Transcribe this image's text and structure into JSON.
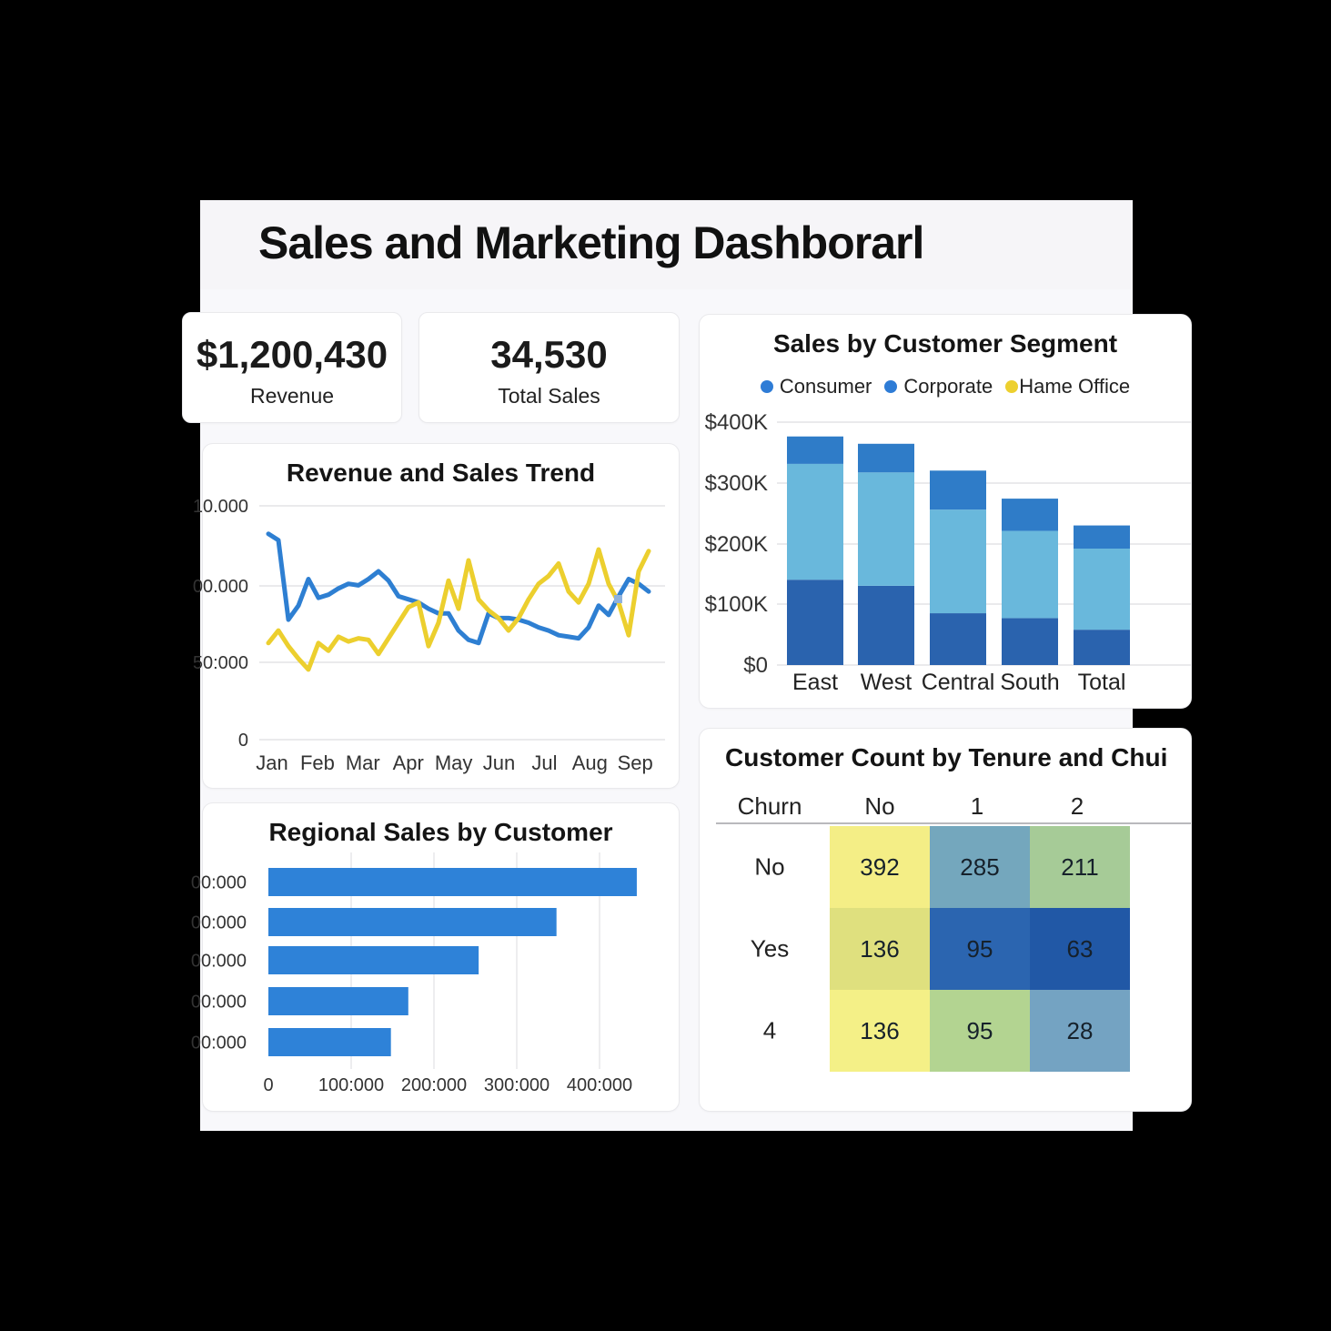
{
  "page": {
    "title": "Sales and Marketing Dashborarl"
  },
  "kpis": [
    {
      "value": "$1,200,430",
      "label": "Revenue"
    },
    {
      "value": "34,530",
      "label": "Total Sales"
    }
  ],
  "chart_data": [
    {
      "id": "trend",
      "type": "line",
      "title": "Revenue and Sales Trend",
      "x_tick_labels": [
        "Jan",
        "Feb",
        "Mar",
        "Apr",
        "May",
        "Jun",
        "Jul",
        "Aug",
        "Sep"
      ],
      "y_tick_labels": [
        "10.000",
        "00.000",
        "50:000",
        "0"
      ],
      "y_axis_values": [
        150000,
        100000,
        50000,
        0
      ],
      "ylim": [
        0,
        150000
      ],
      "grid": true,
      "series": [
        {
          "name": "revenue-blue",
          "color": "#2e7fd2",
          "values_k": [
            132,
            128,
            77,
            86,
            103,
            91,
            93,
            97,
            100,
            99,
            103,
            108,
            102,
            92,
            90,
            88,
            84,
            81,
            81,
            70,
            64,
            62,
            81,
            78,
            78,
            77,
            75,
            72,
            70,
            67,
            66,
            65,
            72,
            86,
            80,
            92,
            103,
            100,
            95
          ]
        },
        {
          "name": "sales-yellow",
          "color": "#eccf2e",
          "values_k": [
            62,
            70,
            60,
            52,
            45,
            62,
            57,
            66,
            63,
            65,
            64,
            55,
            65,
            75,
            85,
            88,
            60,
            75,
            102,
            84,
            115,
            90,
            83,
            78,
            70,
            78,
            90,
            100,
            105,
            113,
            95,
            88,
            100,
            122,
            100,
            88,
            67,
            108,
            121
          ]
        }
      ],
      "marker": {
        "color": "#8fb2dd"
      }
    },
    {
      "id": "segment",
      "type": "stacked-bar",
      "title": "Sales by Customer Segment",
      "legend": [
        {
          "label": "Consumer",
          "color": "#2e7cd6"
        },
        {
          "label": "Corporate",
          "color": "#2e7cd6"
        },
        {
          "label": "Hame Office",
          "color": "#edd02f"
        }
      ],
      "categories": [
        "East",
        "West",
        "Central",
        "South",
        "Total"
      ],
      "y_tick_labels": [
        "$400K",
        "$300K",
        "$200K",
        "$100K",
        "$0"
      ],
      "ylim": [
        0,
        400000
      ],
      "grid": true,
      "series": [
        {
          "name": "segment-bottom",
          "color": "#2a63ae",
          "values_k": [
            140,
            130,
            85,
            77,
            58
          ]
        },
        {
          "name": "segment-middle",
          "color": "#69b8dc",
          "values_k": [
            190,
            186,
            170,
            143,
            133
          ]
        },
        {
          "name": "segment-top",
          "color": "#2f7cc8",
          "values_k": [
            45,
            47,
            64,
            53,
            38
          ]
        }
      ]
    },
    {
      "id": "regional",
      "type": "bar-horizontal",
      "title": "Regional Sales by Customer",
      "y_tick_labels": [
        "00:000",
        "00:000",
        "00:000",
        "00:000",
        "00:000"
      ],
      "x_tick_labels": [
        "0",
        "100:000",
        "200:000",
        "300:000",
        "400:000"
      ],
      "x_axis_values": [
        0,
        100000,
        200000,
        300000,
        400000
      ],
      "xlim": [
        0,
        460000
      ],
      "grid": true,
      "values": [
        445000,
        348000,
        254000,
        169000,
        148000
      ],
      "bar_color": "#2e82d8"
    },
    {
      "id": "heatmap",
      "type": "heatmap",
      "title": "Customer Count by Tenure and Chui",
      "corner_label": "Churn",
      "col_headers": [
        "No",
        "1",
        "2"
      ],
      "row_headers": [
        "No",
        "Yes",
        "4"
      ],
      "values": [
        [
          392,
          285,
          211
        ],
        [
          136,
          95,
          63
        ],
        [
          136,
          95,
          28
        ]
      ],
      "cell_colors": [
        [
          "#f4ee86",
          "#74a7bd",
          "#a6cb97"
        ],
        [
          "#dfe07e",
          "#2b65b0",
          "#2158a6"
        ],
        [
          "#f4f087",
          "#b3d491",
          "#74a3c2"
        ]
      ]
    }
  ]
}
